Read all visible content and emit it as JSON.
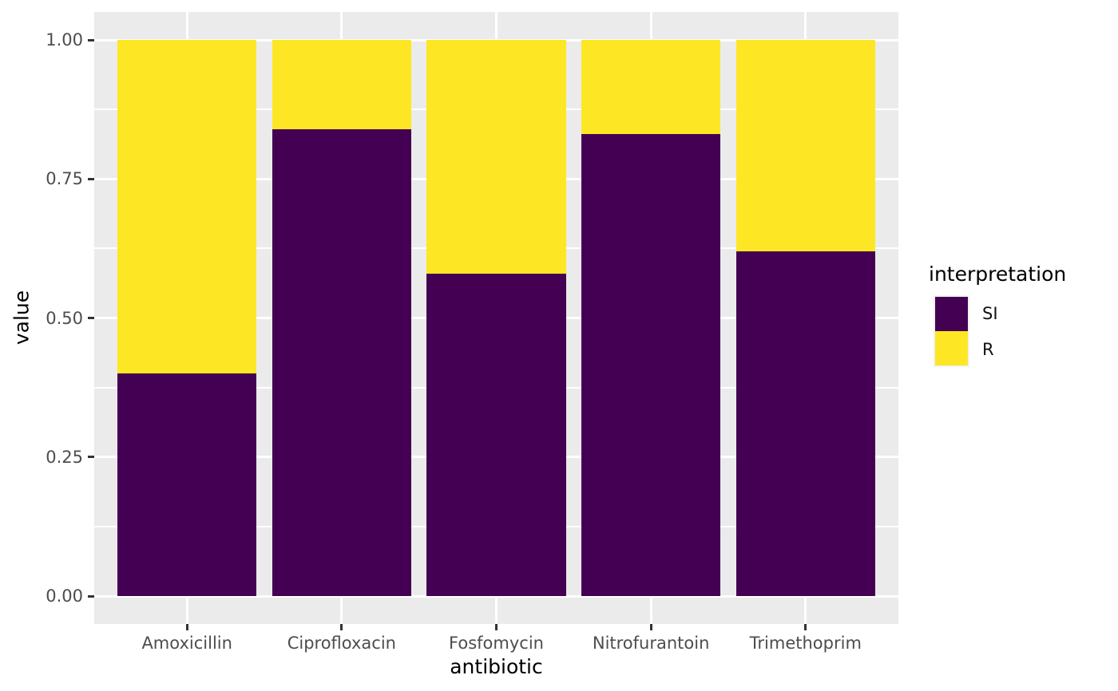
{
  "chart_data": {
    "type": "bar",
    "stacked": true,
    "title": "",
    "xlabel": "antibiotic",
    "ylabel": "value",
    "categories": [
      "Amoxicillin",
      "Ciprofloxacin",
      "Fosfomycin",
      "Nitrofurantoin",
      "Trimethoprim"
    ],
    "series": [
      {
        "name": "SI",
        "color": "#440154",
        "values": [
          0.4,
          0.84,
          0.58,
          0.83,
          0.62
        ]
      },
      {
        "name": "R",
        "color": "#FDE725",
        "values": [
          0.6,
          0.16,
          0.42,
          0.17,
          0.38
        ]
      }
    ],
    "ylim": [
      0,
      1
    ],
    "y_ticks": [
      {
        "value": 0.0,
        "label": "0.00"
      },
      {
        "value": 0.25,
        "label": "0.25"
      },
      {
        "value": 0.5,
        "label": "0.50"
      },
      {
        "value": 0.75,
        "label": "0.75"
      },
      {
        "value": 1.0,
        "label": "1.00"
      }
    ],
    "y_minor_ticks": [
      0.125,
      0.375,
      0.625,
      0.875
    ],
    "grid": true,
    "legend": {
      "position": "right",
      "title": "interpretation",
      "entries": [
        {
          "label": "SI",
          "color": "#440154"
        },
        {
          "label": "R",
          "color": "#FDE725"
        }
      ]
    },
    "style": {
      "panel_background": "#EBEBEB",
      "grid_color": "#FFFFFF",
      "tick_label_color": "#4d4d4d",
      "axis_title_color": "#000000",
      "tick_mark_color": "#333333"
    }
  }
}
